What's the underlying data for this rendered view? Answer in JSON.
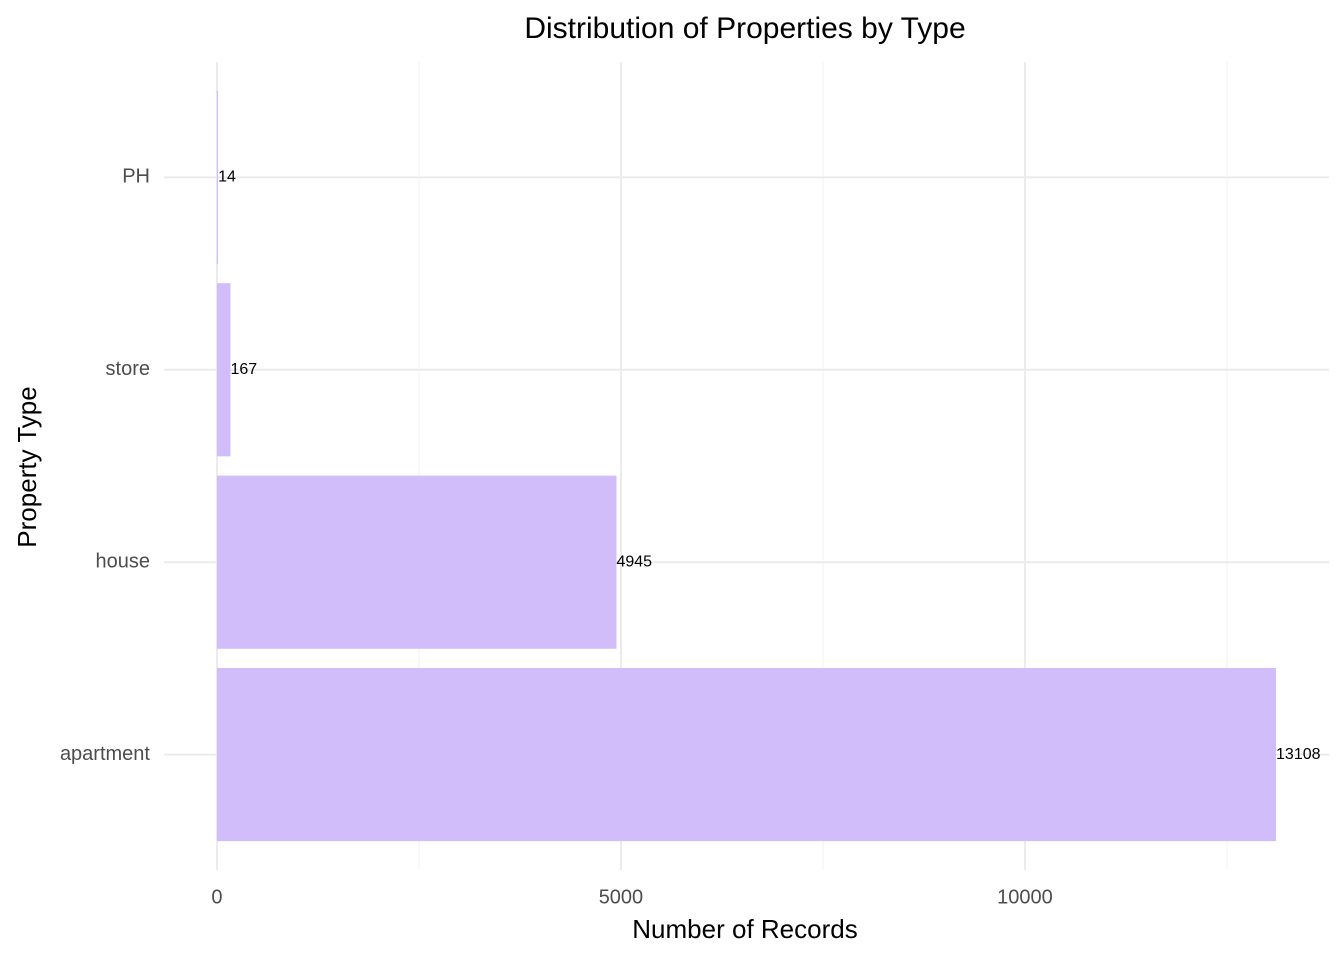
{
  "chart_data": {
    "type": "bar",
    "orientation": "horizontal",
    "title": "Distribution of Properties by Type",
    "x_label": "Number of Records",
    "y_label": "Property Type",
    "categories": [
      "apartment",
      "house",
      "store",
      "PH"
    ],
    "values": [
      13108,
      4945,
      167,
      14
    ],
    "color": "#d2bdfb",
    "xlim": [
      -655.4,
      13763.4
    ],
    "xticks": [
      0,
      5000,
      10000
    ],
    "grid": true
  }
}
